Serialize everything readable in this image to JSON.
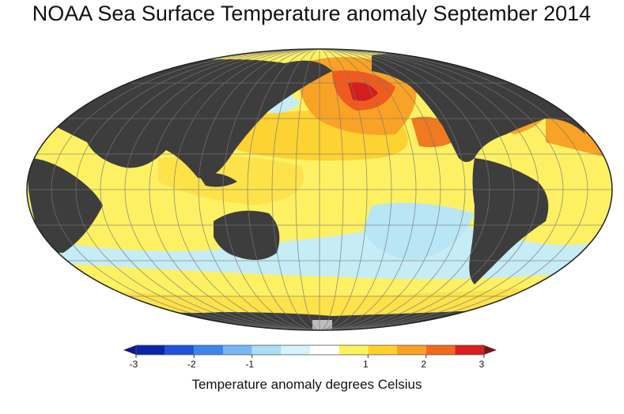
{
  "title": "NOAA Sea Surface Temperature anomaly September 2014",
  "colorbar": {
    "label": "Temperature anomaly degrees Celsius",
    "range": [
      -3,
      3
    ],
    "ticks": [
      -3,
      -2,
      -1,
      1,
      2,
      3
    ],
    "bins": [
      -3,
      -2.5,
      -2,
      -1.5,
      -1,
      -0.5,
      0,
      0.5,
      1,
      1.5,
      2,
      2.5,
      3
    ],
    "colors": [
      "#0b24a8",
      "#1f52dc",
      "#3c86ea",
      "#78b8f2",
      "#a9def5",
      "#d4f3fa",
      "#ffffff",
      "#fff35c",
      "#fdd030",
      "#f9a126",
      "#f06a1e",
      "#d81f1f"
    ],
    "under_color": "#0a1a80",
    "over_color": "#7a1414"
  }
}
